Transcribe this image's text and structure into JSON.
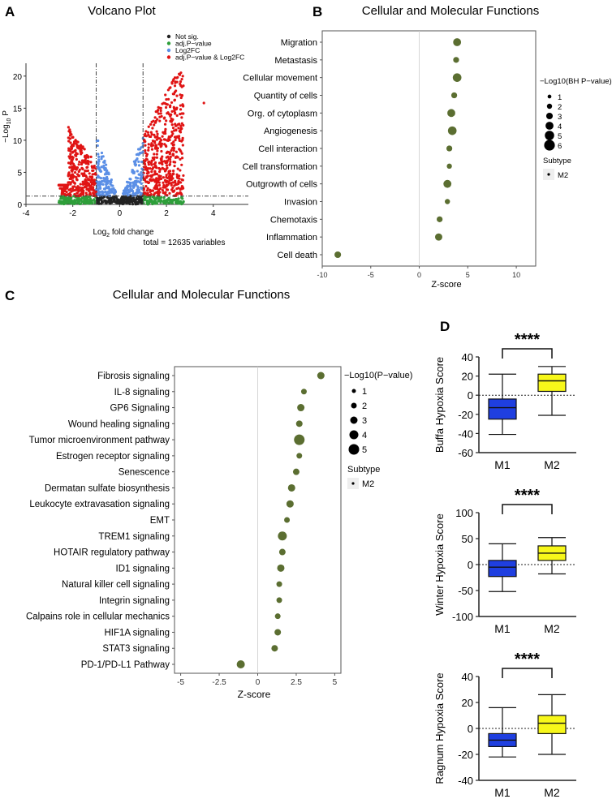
{
  "colors": {
    "not_sig": "#222222",
    "adj_p": "#2e9e3a",
    "log2fc": "#5b8fe6",
    "both": "#e01414",
    "dot": "#5b6e31",
    "m1": "#1f3fe0",
    "m2": "#f7f71a"
  },
  "panelA": {
    "letter": "A",
    "chart_data": {
      "type": "scatter",
      "title": "Volcano Plot",
      "xlabel_prefix": "Log",
      "xlabel_sub": "2",
      "xlabel_suffix": " fold change",
      "ylabel_prefix": "−Log",
      "ylabel_sub": "10",
      "ylabel_suffix": " P",
      "xlim": [
        -4,
        5.5
      ],
      "ylim": [
        0,
        22
      ],
      "xticks": [
        -4,
        -2,
        0,
        2,
        4
      ],
      "yticks": [
        0,
        5,
        10,
        15,
        20
      ],
      "fc_cutoff": 1,
      "p_cutoff": 1.3,
      "legend": [
        "Not sig.",
        "adj.P−value",
        "Log2FC",
        "adj.P−value & Log2FC"
      ],
      "total_text": "total = 12635 variables",
      "outlier": [
        3.6,
        15.8
      ]
    }
  },
  "panelB": {
    "letter": "B",
    "chart_data": {
      "type": "scatter",
      "title": "Cellular and Molecular Functions",
      "xlabel": "Z-score",
      "xlim": [
        -10,
        12
      ],
      "xticks": [
        -10,
        -5,
        0,
        5,
        10
      ],
      "categories": [
        "Migration",
        "Metastasis",
        "Cellular movement",
        "Quantity of cells",
        "Org. of cytoplasm",
        "Angiogenesis",
        "Cell interaction",
        "Cell transformation",
        "Outgrowth of cells",
        "Invasion",
        "Chemotaxis",
        "Inflammation",
        "Cell death"
      ],
      "values": [
        3.9,
        3.8,
        3.9,
        3.6,
        3.3,
        3.4,
        3.1,
        3.1,
        2.9,
        2.9,
        2.1,
        2.0,
        -8.4
      ],
      "sizes": [
        4,
        2.5,
        4.5,
        2.5,
        4,
        4.5,
        2.5,
        2,
        4,
        2,
        2.5,
        3.5,
        3
      ],
      "size_legend_title": "−Log10(BH P−value)",
      "size_legend": [
        "1",
        "2",
        "3",
        "4",
        "5",
        "6"
      ],
      "subtype_title": "Subtype",
      "subtype": "M2"
    }
  },
  "panelC": {
    "letter": "C",
    "chart_data": {
      "type": "scatter",
      "title": "Cellular and Molecular Functions",
      "xlabel": "Z-score",
      "xlim": [
        -5.4,
        5.4
      ],
      "xticks": [
        -5,
        -2.5,
        0,
        2.5,
        5
      ],
      "categories": [
        "Fibrosis signaling",
        "IL-8 signaling",
        "GP6 Signaling",
        "Wound healing signaling",
        "Tumor microenvironment pathway",
        "Estrogen receptor signaling",
        "Senescence",
        "Dermatan sulfate biosynthesis",
        "Leukocyte extravasation signaling",
        "EMT",
        "TREM1 signaling",
        "HOTAIR regulatory pathway",
        "ID1 signaling",
        "Natural killer cell signaling",
        "Integrin signaling",
        "Calpains role in cellular mechanics",
        "HIF1A signaling",
        "STAT3 signaling",
        "PD-1/PD-L1  Pathway"
      ],
      "values": [
        4.1,
        3.0,
        2.8,
        2.7,
        2.7,
        2.7,
        2.5,
        2.2,
        2.1,
        1.9,
        1.6,
        1.6,
        1.5,
        1.4,
        1.4,
        1.3,
        1.3,
        1.1,
        -1.1
      ],
      "sizes": [
        3,
        2,
        3,
        2.5,
        5,
        2,
        2.5,
        3,
        3,
        2,
        4,
        2.5,
        3,
        2,
        2,
        2,
        2.5,
        2.5,
        3.5
      ],
      "size_legend_title": "−Log10(P−value)",
      "size_legend": [
        "1",
        "2",
        "3",
        "4",
        "5"
      ],
      "subtype_title": "Subtype",
      "subtype": "M2"
    }
  },
  "panelD": {
    "letter": "D",
    "chart_data": [
      {
        "type": "box",
        "ylabel": "Buffa Hypoxia Score",
        "ylim": [
          -60,
          40
        ],
        "yticks": [
          -60,
          -40,
          -20,
          0,
          20,
          40
        ],
        "categories": [
          "M1",
          "M2"
        ],
        "boxes": [
          {
            "name": "M1",
            "min": -41,
            "q1": -25,
            "median": -13,
            "q3": -4,
            "max": 22
          },
          {
            "name": "M2",
            "min": -21,
            "q1": 4,
            "median": 15,
            "q3": 22,
            "max": 30
          }
        ],
        "significance": "****"
      },
      {
        "type": "box",
        "ylabel": "Winter Hypoxia Score",
        "ylim": [
          -100,
          100
        ],
        "yticks": [
          -100,
          -50,
          0,
          50,
          100
        ],
        "categories": [
          "M1",
          "M2"
        ],
        "boxes": [
          {
            "name": "M1",
            "min": -52,
            "q1": -23,
            "median": -5,
            "q3": 8,
            "max": 40
          },
          {
            "name": "M2",
            "min": -18,
            "q1": 8,
            "median": 22,
            "q3": 36,
            "max": 52
          }
        ],
        "significance": "****"
      },
      {
        "type": "box",
        "ylabel": "Ragnum Hypoxia Score",
        "ylim": [
          -40,
          40
        ],
        "yticks": [
          -40,
          -20,
          0,
          20,
          40
        ],
        "categories": [
          "M1",
          "M2"
        ],
        "boxes": [
          {
            "name": "M1",
            "min": -22,
            "q1": -14,
            "median": -9,
            "q3": -4,
            "max": 16
          },
          {
            "name": "M2",
            "min": -20,
            "q1": -4,
            "median": 4,
            "q3": 10,
            "max": 26
          }
        ],
        "significance": "****"
      }
    ]
  }
}
